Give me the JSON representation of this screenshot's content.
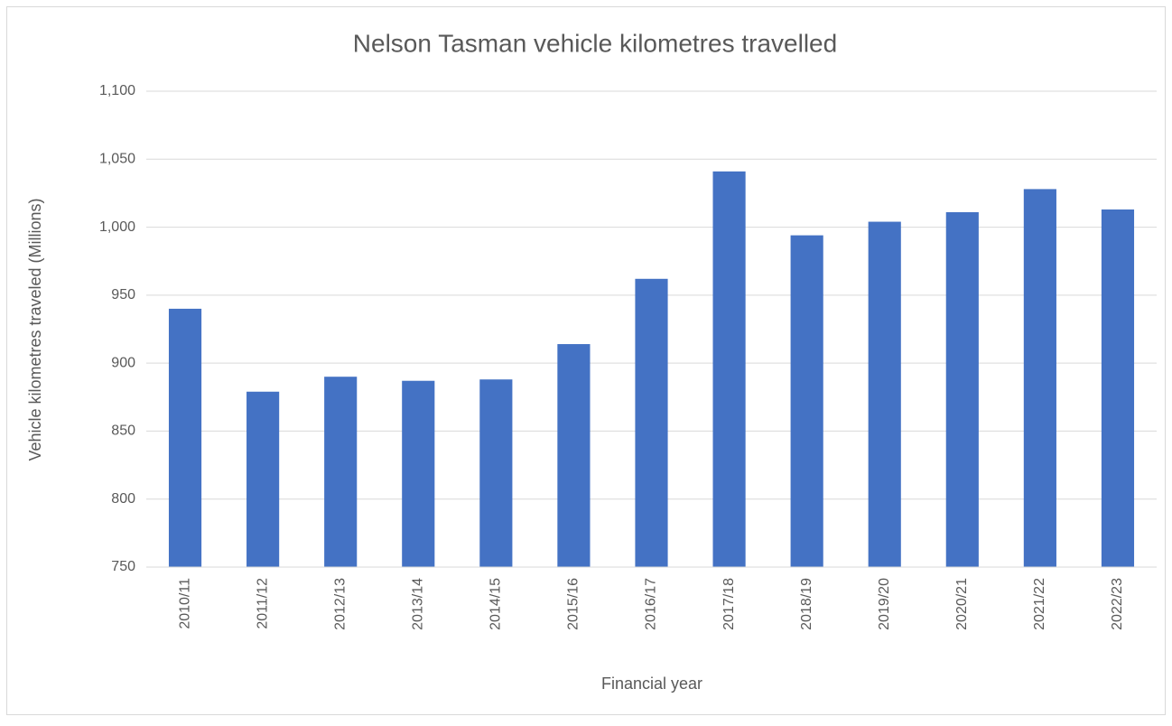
{
  "chart_data": {
    "type": "bar",
    "title": "Nelson Tasman vehicle kilometres travelled",
    "x_label": "Financial year",
    "y_label": "Vehicle kilometres traveled (Millions)",
    "categories": [
      "2010/11",
      "2011/12",
      "2012/13",
      "2013/14",
      "2014/15",
      "2015/16",
      "2016/17",
      "2017/18",
      "2018/19",
      "2019/20",
      "2020/21",
      "2021/22",
      "2022/23"
    ],
    "values": [
      940,
      879,
      890,
      887,
      888,
      914,
      962,
      1041,
      994,
      1004,
      1011,
      1028,
      1013
    ],
    "color": "#4472c4",
    "ylim": [
      750,
      1100
    ],
    "yticks": [
      750,
      800,
      850,
      900,
      950,
      {
        "value": 1000,
        "label": "1,000"
      },
      {
        "value": 1050,
        "label": "1,050"
      },
      {
        "value": 1100,
        "label": "1,100"
      }
    ],
    "grid": true
  }
}
